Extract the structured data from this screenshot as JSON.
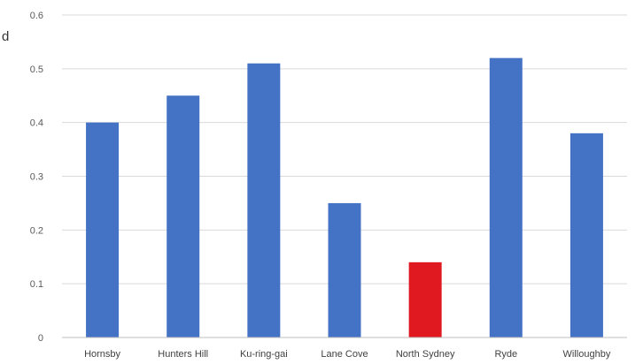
{
  "chart_data": {
    "type": "bar",
    "title": "",
    "xlabel": "",
    "ylabel": "",
    "categories": [
      "Hornsby",
      "Hunters Hill",
      "Ku-ring-gai",
      "Lane Cove",
      "North Sydney",
      "Ryde",
      "Willoughby"
    ],
    "values": [
      0.4,
      0.45,
      0.51,
      0.25,
      0.14,
      0.52,
      0.38
    ],
    "ylim": [
      0,
      0.6
    ],
    "yticks": [
      "0",
      "0.1",
      "0.2",
      "0.3",
      "0.4",
      "0.5",
      "0.6"
    ],
    "grid": true,
    "legend": "none",
    "colors": {
      "default_bar": "#4472C4",
      "highlight_bar": "#E0181F",
      "gridline": "#D9D9D9",
      "axis": "#BFBFBF"
    },
    "highlight_category": "North Sydney"
  },
  "edge_text": "d"
}
